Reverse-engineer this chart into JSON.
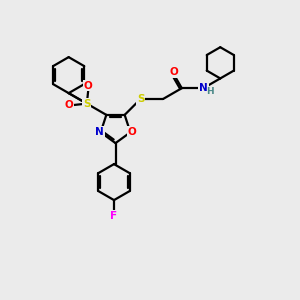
{
  "background_color": "#ebebeb",
  "atom_colors": {
    "C": "#000000",
    "N": "#0000cc",
    "O": "#ff0000",
    "S": "#cccc00",
    "F": "#ff00ff",
    "H": "#4a8888"
  },
  "bond_color": "#000000",
  "line_width": 1.6,
  "dbl_sep": 0.06
}
